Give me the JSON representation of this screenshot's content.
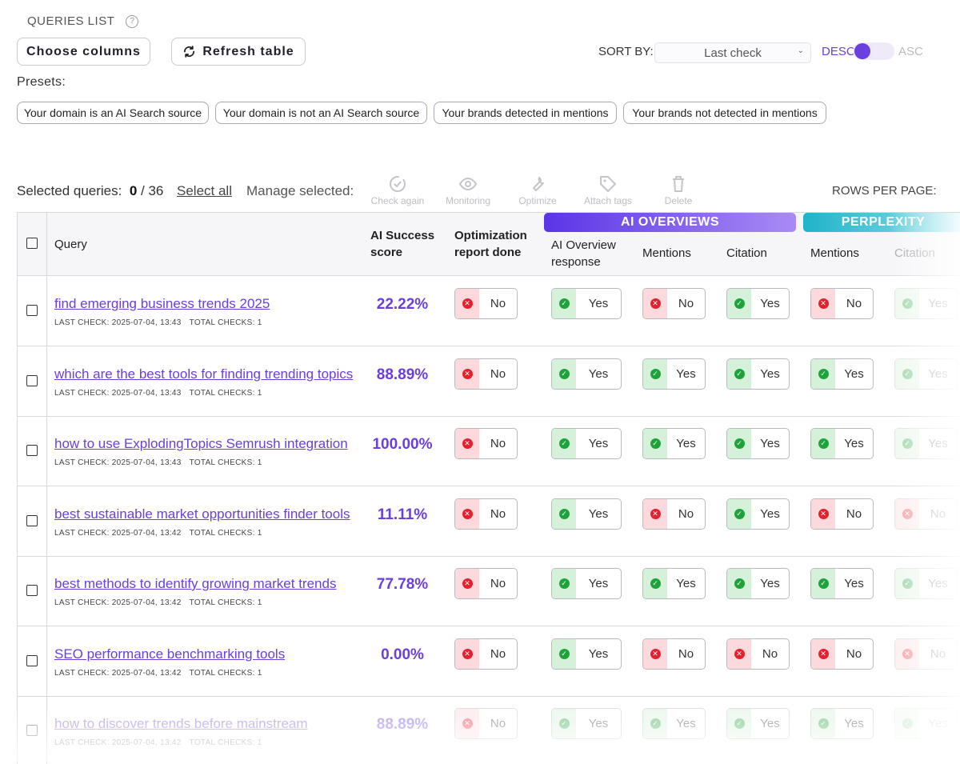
{
  "header": {
    "title": "QUERIES LIST",
    "choose_columns": "Choose columns",
    "refresh_table": "Refresh table",
    "sort_by_label": "SORT BY:",
    "sort_value": "Last check",
    "desc": "DESC",
    "asc": "ASC"
  },
  "presets": {
    "label": "Presets:",
    "items": [
      "Your domain is an AI Search source",
      "Your domain is not an AI Search source",
      "Your brands detected in mentions",
      "Your brands not detected in mentions"
    ]
  },
  "selection": {
    "label": "Selected queries:",
    "count": "0",
    "total": "36",
    "select_all": "Select all",
    "manage": "Manage selected:",
    "actions": [
      "Check again",
      "Monitoring",
      "Optimize",
      "Attach tags",
      "Delete"
    ],
    "rows_per_page": "ROWS PER PAGE:"
  },
  "table": {
    "columns": {
      "query": "Query",
      "ai_success_1": "AI Success",
      "ai_success_2": "score",
      "opt_1": "Optimization",
      "opt_2": "report done",
      "aio_1": "AI Overview",
      "aio_2": "response",
      "mentions": "Mentions",
      "citation": "Citation",
      "p_mentions": "Mentions",
      "p_citation": "Citation"
    },
    "groups": {
      "ai_overviews": "AI OVERVIEWS",
      "perplexity": "PERPLEXITY"
    },
    "last_check_prefix": "LAST CHECK:",
    "total_checks_prefix": "TOTAL CHECKS:",
    "rows": [
      {
        "query": "find emerging business trends 2025",
        "last_check": "LAST CHECK: 2025-07-04, 13:43",
        "total_checks": "TOTAL CHECKS: 1",
        "score": "22.22%",
        "opt": "No",
        "aio": "Yes",
        "mentions": "No",
        "citation": "Yes",
        "p_mentions": "No",
        "p_citation": "Yes"
      },
      {
        "query": "which are the best tools for finding trending topics",
        "last_check": "LAST CHECK: 2025-07-04, 13:43",
        "total_checks": "TOTAL CHECKS: 1",
        "score": "88.89%",
        "opt": "No",
        "aio": "Yes",
        "mentions": "Yes",
        "citation": "Yes",
        "p_mentions": "Yes",
        "p_citation": "Yes"
      },
      {
        "query": "how to use ExplodingTopics Semrush integration",
        "last_check": "LAST CHECK: 2025-07-04, 13:43",
        "total_checks": "TOTAL CHECKS: 1",
        "score": "100.00%",
        "opt": "No",
        "aio": "Yes",
        "mentions": "Yes",
        "citation": "Yes",
        "p_mentions": "Yes",
        "p_citation": "Yes"
      },
      {
        "query": "best sustainable market opportunities finder tools",
        "last_check": "LAST CHECK: 2025-07-04, 13:42",
        "total_checks": "TOTAL CHECKS: 1",
        "score": "11.11%",
        "opt": "No",
        "aio": "Yes",
        "mentions": "No",
        "citation": "Yes",
        "p_mentions": "No",
        "p_citation": "No"
      },
      {
        "query": "best methods to identify growing market trends",
        "last_check": "LAST CHECK: 2025-07-04, 13:42",
        "total_checks": "TOTAL CHECKS: 1",
        "score": "77.78%",
        "opt": "No",
        "aio": "Yes",
        "mentions": "Yes",
        "citation": "Yes",
        "p_mentions": "Yes",
        "p_citation": "Yes"
      },
      {
        "query": "SEO performance benchmarking tools",
        "last_check": "LAST CHECK: 2025-07-04, 13:42",
        "total_checks": "TOTAL CHECKS: 1",
        "score": "0.00%",
        "opt": "No",
        "aio": "Yes",
        "mentions": "No",
        "citation": "No",
        "p_mentions": "No",
        "p_citation": "No"
      },
      {
        "query": "how to discover trends before mainstream",
        "last_check": "LAST CHECK: 2025-07-04, 13:42",
        "total_checks": "TOTAL CHECKS: 1",
        "score": "88.89%",
        "opt": "No",
        "aio": "Yes",
        "mentions": "Yes",
        "citation": "Yes",
        "p_mentions": "Yes",
        "p_citation": "Yes"
      }
    ]
  },
  "colors": {
    "accent": "#6b3ee0",
    "ai_overviews_start": "#5b35e6",
    "ai_overviews_end": "#a98bf5",
    "perplexity_start": "#1fb3c9",
    "perplexity_end": "#8fe0ea",
    "yes": "#1ea33b",
    "no": "#e5202e"
  }
}
